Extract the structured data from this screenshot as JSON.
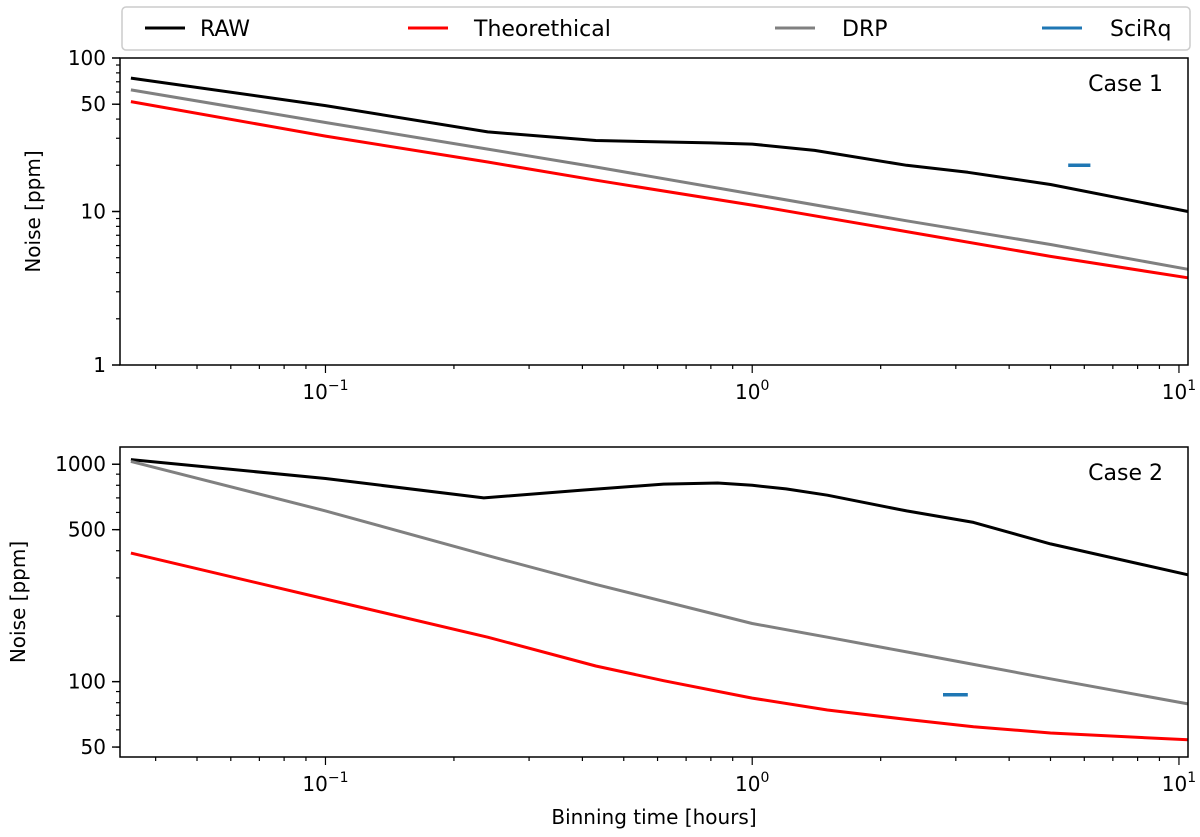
{
  "colors": {
    "RAW": "#000000",
    "Theorethical": "#ff0000",
    "DRP": "#808080",
    "SciRq": "#1f77b4"
  },
  "legend": {
    "entries": [
      "RAW",
      "Theorethical",
      "DRP",
      "SciRq"
    ]
  },
  "chart_data": [
    {
      "type": "line",
      "annotation": "Case 1",
      "ylabel": "Noise [ppm]",
      "xlabel": "",
      "xscale": "log",
      "yscale": "log",
      "xlim": [
        0.033,
        10.5
      ],
      "ylim": [
        1,
        100
      ],
      "x_ticks": [
        {
          "value": 0.1,
          "base": "10",
          "exp": "−1"
        },
        {
          "value": 1,
          "base": "10",
          "exp": "0"
        },
        {
          "value": 10,
          "base": "10",
          "exp": "1"
        }
      ],
      "y_ticks": [
        {
          "value": 1,
          "label": "1"
        },
        {
          "value": 10,
          "label": "10"
        },
        {
          "value": 50,
          "label": "50"
        },
        {
          "value": 100,
          "label": "100"
        }
      ],
      "series": [
        {
          "name": "RAW",
          "x": [
            0.035,
            0.1,
            0.24,
            0.43,
            0.8,
            1.0,
            1.4,
            2.3,
            3.2,
            5.0,
            10.5
          ],
          "y": [
            74,
            49,
            33,
            29,
            28,
            27.5,
            25,
            20,
            18,
            15,
            10
          ]
        },
        {
          "name": "DRP",
          "x": [
            0.035,
            0.1,
            0.24,
            0.43,
            1.0,
            2.3,
            5.0,
            10.5
          ],
          "y": [
            62,
            38,
            25.5,
            19.5,
            13,
            8.7,
            6.1,
            4.2
          ]
        },
        {
          "name": "Theorethical",
          "x": [
            0.035,
            0.1,
            0.24,
            0.43,
            1.0,
            2.3,
            5.0,
            10.5
          ],
          "y": [
            52,
            31,
            21,
            16,
            11,
            7.4,
            5.1,
            3.7
          ]
        },
        {
          "name": "SciRq",
          "x": [
            5.5,
            6.2
          ],
          "y": [
            20,
            20
          ]
        }
      ]
    },
    {
      "type": "line",
      "annotation": "Case 2",
      "ylabel": "Noise [ppm]",
      "xlabel": "Binning time [hours]",
      "xscale": "log",
      "yscale": "log",
      "xlim": [
        0.033,
        10.5
      ],
      "ylim": [
        45,
        1200
      ],
      "x_ticks": [
        {
          "value": 0.1,
          "base": "10",
          "exp": "−1"
        },
        {
          "value": 1,
          "base": "10",
          "exp": "0"
        },
        {
          "value": 10,
          "base": "10",
          "exp": "1"
        }
      ],
      "y_ticks": [
        {
          "value": 50,
          "label": "50"
        },
        {
          "value": 100,
          "label": "100"
        },
        {
          "value": 500,
          "label": "500"
        },
        {
          "value": 1000,
          "label": "1000"
        }
      ],
      "series": [
        {
          "name": "RAW",
          "x": [
            0.035,
            0.1,
            0.235,
            0.4,
            0.62,
            0.83,
            1.0,
            1.2,
            1.5,
            2.3,
            3.3,
            5.0,
            10.5
          ],
          "y": [
            1050,
            860,
            700,
            760,
            810,
            820,
            800,
            770,
            720,
            610,
            540,
            430,
            310
          ]
        },
        {
          "name": "DRP",
          "x": [
            0.035,
            0.1,
            0.24,
            0.43,
            1.0,
            1.5,
            2.3,
            3.3,
            5.0,
            10.5
          ],
          "y": [
            1030,
            610,
            380,
            280,
            185,
            160,
            137,
            120,
            103,
            79
          ]
        },
        {
          "name": "Theorethical",
          "x": [
            0.035,
            0.1,
            0.24,
            0.43,
            0.62,
            1.0,
            1.5,
            2.3,
            3.3,
            5.0,
            10.5
          ],
          "y": [
            390,
            240,
            160,
            118,
            101,
            84,
            74,
            67,
            62,
            58,
            54
          ]
        },
        {
          "name": "SciRq",
          "x": [
            2.8,
            3.2
          ],
          "y": [
            87,
            87
          ]
        }
      ]
    }
  ]
}
